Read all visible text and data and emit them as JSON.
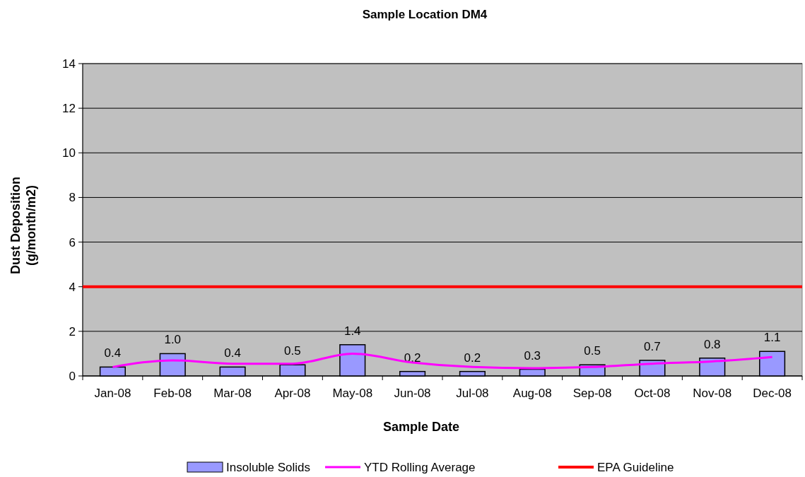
{
  "chart_data": {
    "type": "bar",
    "title": "Sample Location DM4",
    "xlabel": "Sample Date",
    "ylabel": "Dust Deposition\n(g/month/m2)",
    "categories": [
      "Jan-08",
      "Feb-08",
      "Mar-08",
      "Apr-08",
      "May-08",
      "Jun-08",
      "Jul-08",
      "Aug-08",
      "Sep-08",
      "Oct-08",
      "Nov-08",
      "Dec-08"
    ],
    "series": [
      {
        "name": "Insoluble Solids",
        "color": "#9999ff",
        "values": [
          0.4,
          1.0,
          0.4,
          0.5,
          1.4,
          0.2,
          0.2,
          0.3,
          0.5,
          0.7,
          0.8,
          1.1
        ],
        "value_labels": [
          "0.4",
          "1.0",
          "0.4",
          "0.5",
          "1.4",
          "0.2",
          "0.2",
          "0.3",
          "0.5",
          "0.7",
          "0.8",
          "1.1"
        ]
      },
      {
        "name": "YTD Rolling Average",
        "type": "line",
        "color": "#ff00ff",
        "values": [
          0.4,
          0.7,
          0.55,
          0.55,
          1.0,
          0.6,
          0.4,
          0.35,
          0.4,
          0.55,
          0.65,
          0.85
        ]
      }
    ],
    "ref_lines": [
      {
        "axis": "y",
        "value": 4,
        "label": "EPA Guideline",
        "color": "#ff0000"
      }
    ],
    "ylim": [
      0,
      14
    ],
    "yticks": [
      0,
      2,
      4,
      6,
      8,
      10,
      12,
      14
    ],
    "grid": "y",
    "legend": "bottom",
    "marker": "none"
  }
}
